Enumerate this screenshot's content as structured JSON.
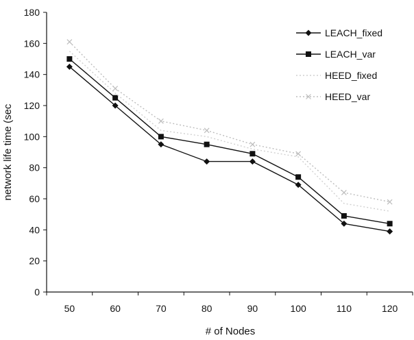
{
  "chart_data": {
    "type": "line",
    "xlabel": "# of Nodes",
    "ylabel": "network life time (sec",
    "categories": [
      50,
      60,
      70,
      80,
      90,
      100,
      110,
      120
    ],
    "ylim": [
      0,
      180
    ],
    "yticks": [
      0,
      20,
      40,
      60,
      80,
      100,
      120,
      140,
      160,
      180
    ],
    "grid": false,
    "legend_position": "top-right inside plot",
    "series": [
      {
        "name": "LEACH_fixed",
        "values": [
          145,
          120,
          95,
          84,
          84,
          69,
          44,
          39
        ],
        "color": "#111111",
        "marker": "diamond",
        "dash": "solid"
      },
      {
        "name": "LEACH_var",
        "values": [
          150,
          125,
          100,
          95,
          89,
          74,
          49,
          44
        ],
        "color": "#111111",
        "marker": "square",
        "dash": "solid"
      },
      {
        "name": "HEED_fixed",
        "values": [
          155,
          128,
          104,
          100,
          92,
          87,
          57,
          52
        ],
        "color": "#d0d0d0",
        "marker": "none",
        "dash": "dotted"
      },
      {
        "name": "HEED_var",
        "values": [
          161,
          131,
          110,
          104,
          95,
          89,
          64,
          58
        ],
        "color": "#bdbdbd",
        "marker": "x",
        "dash": "dotted"
      }
    ]
  }
}
